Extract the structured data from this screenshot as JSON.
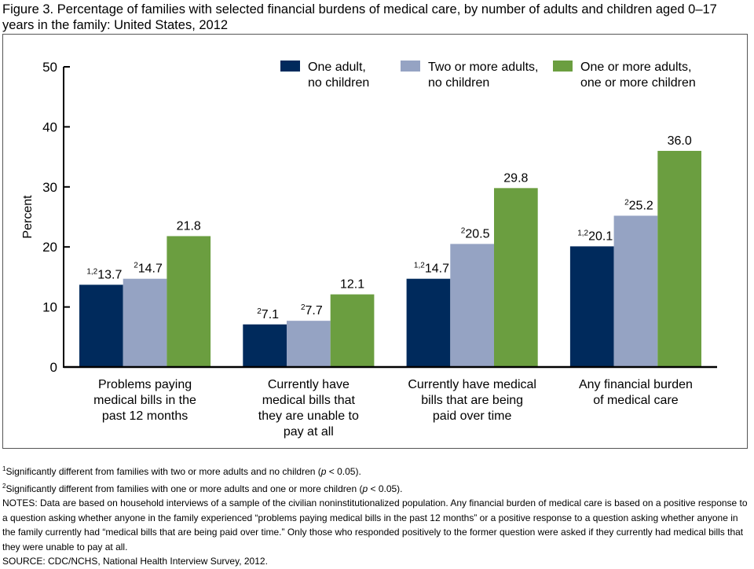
{
  "title": "Figure 3. Percentage of families with selected financial burdens of medical care, by number of adults and children aged 0–17 years in the family: United States, 2012",
  "chart_data": {
    "type": "bar",
    "title": "Figure 3. Percentage of families with selected financial burdens of medical care, by number of adults and children aged 0–17 years in the family: United States, 2012",
    "xlabel": "",
    "ylabel": "Percent",
    "ylim": [
      0,
      50
    ],
    "yticks": [
      0,
      10,
      20,
      30,
      40,
      50
    ],
    "grid": false,
    "legend_position": "top-right",
    "categories": [
      [
        "Problems paying",
        "medical bills in the",
        "past 12 months"
      ],
      [
        "Currently have",
        "medical bills that",
        "they are unable to",
        "pay at all"
      ],
      [
        "Currently have medical",
        "bills that are being",
        "paid over time"
      ],
      [
        "Any financial burden",
        "of medical care"
      ]
    ],
    "series": [
      {
        "name": "One adult, no children",
        "legend_lines": [
          "One adult,",
          "no children"
        ],
        "color": "#002a5c",
        "values": [
          13.7,
          7.1,
          14.7,
          20.1
        ],
        "labels": [
          "13.7",
          "7.1",
          "14.7",
          "20.1"
        ],
        "sup": [
          "1,2",
          "2",
          "1,2",
          "1,2"
        ]
      },
      {
        "name": "Two or more adults, no children",
        "legend_lines": [
          "Two or more adults,",
          "no children"
        ],
        "color": "#95a3c3",
        "values": [
          14.7,
          7.7,
          20.5,
          25.2
        ],
        "labels": [
          "14.7",
          "7.7",
          "20.5",
          "25.2"
        ],
        "sup": [
          "2",
          "2",
          "2",
          "2"
        ]
      },
      {
        "name": "One or more adults, one or more children",
        "legend_lines": [
          "One or more adults,",
          "one or more children"
        ],
        "color": "#6b9e40",
        "values": [
          21.8,
          12.1,
          29.8,
          36.0
        ],
        "labels": [
          "21.8",
          "12.1",
          "29.8",
          "36.0"
        ],
        "sup": [
          "",
          "",
          "",
          ""
        ]
      }
    ]
  },
  "footnotes": {
    "fn1_mark": "1",
    "fn1": "Significantly different from families with two or more adults and no children (",
    "fn2_mark": "2",
    "fn2": "Significantly different from families with one or more adults and one or more children (",
    "p_label": "p",
    "p_tail": " < 0.05).",
    "notes": "NOTES: Data are based on household interviews of a sample of the civilian noninstitutionalized population. Any financial burden of medical care is based on a positive response to a question asking whether anyone in the family experienced “problems paying medical bills in the past 12 months” or a positive response to a question asking whether anyone in the family currently had “medical bills that are being paid over time.” Only those who responded positively to the former question were asked if they currently had medical bills that they were unable to pay at all.",
    "source": "SOURCE: CDC/NCHS, National Health Interview Survey, 2012."
  }
}
